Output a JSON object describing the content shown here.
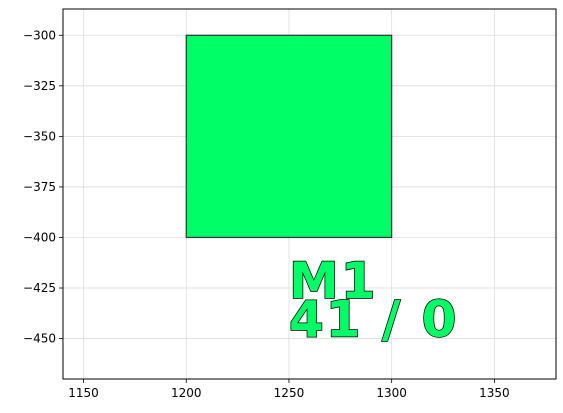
{
  "chart_data": {
    "type": "scatter",
    "title": "",
    "xlabel": "",
    "ylabel": "",
    "xlim": [
      1140,
      1380
    ],
    "ylim": [
      -470,
      -287
    ],
    "xticks": [
      1150,
      1200,
      1250,
      1300,
      1350
    ],
    "yticks": [
      -300,
      -325,
      -350,
      -375,
      -400,
      -425,
      -450
    ],
    "grid": true,
    "shapes": [
      {
        "kind": "rectangle",
        "x0": 1200,
        "x1": 1300,
        "y0": -400,
        "y1": -300,
        "fill": "#00ff66",
        "edge": "#333333"
      }
    ],
    "annotations": [
      {
        "text": "M1",
        "x": 1250,
        "y": -421,
        "color": "#00ff66",
        "edge": "#000000"
      },
      {
        "text": "41 / 0",
        "x": 1250,
        "y": -440,
        "color": "#00ff66",
        "edge": "#000000"
      }
    ]
  }
}
